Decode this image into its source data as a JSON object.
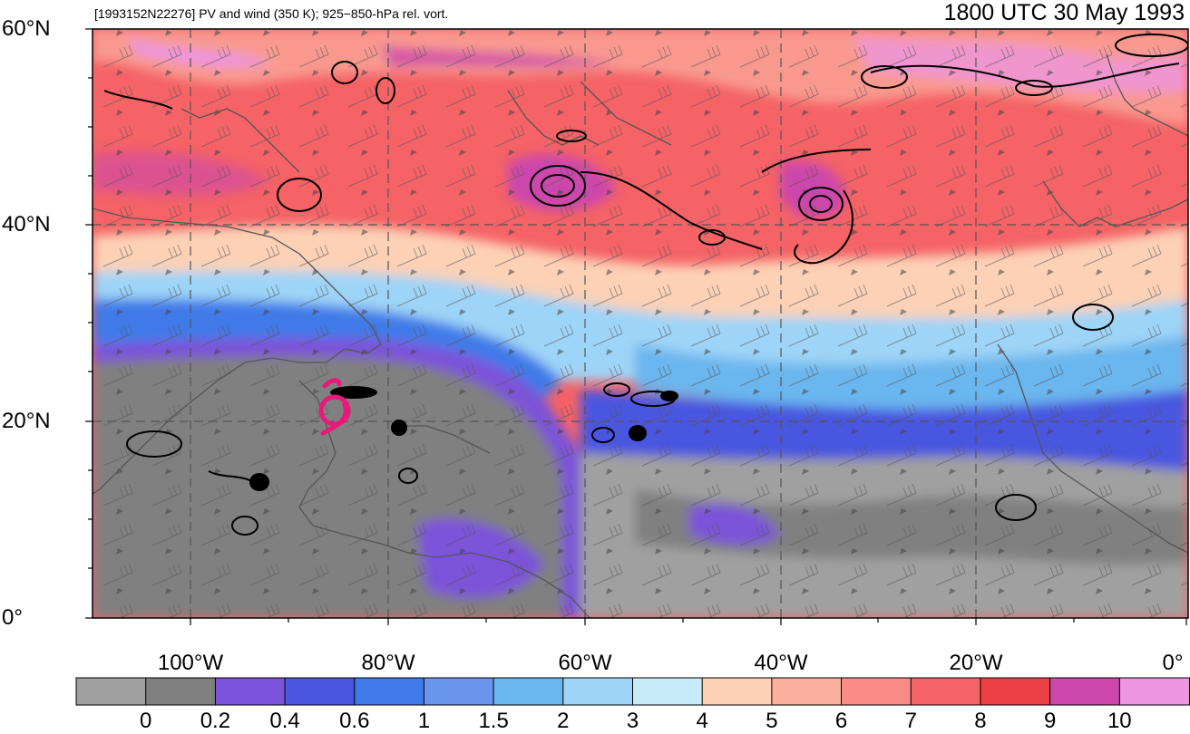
{
  "map": {
    "title_left": "[1993152N22276] PV and wind (350 K); 925−850-hPa rel. vort.",
    "title_right": "1800 UTC 30 May 1993",
    "projection": "cylindrical equidistant",
    "lon_range": [
      -110,
      0
    ],
    "lat_range": [
      0,
      60
    ],
    "gridlines": "dashed",
    "lat_labels": [
      "60°N",
      "40°N",
      "20°N",
      "0°"
    ],
    "lon_labels": [
      "100°W",
      "80°W",
      "60°W",
      "40°W",
      "20°W",
      "0°"
    ],
    "storm_marker_color": "#e8197b",
    "contour_color": "#000000",
    "coastline_color": "#555555"
  },
  "colorbar": {
    "levels": [
      "0",
      "0.2",
      "0.4",
      "0.6",
      "1",
      "1.5",
      "2",
      "3",
      "4",
      "5",
      "6",
      "7",
      "8",
      "9",
      "10"
    ],
    "colors": [
      "#a0a0a0",
      "#808080",
      "#7b52d9",
      "#4a56e0",
      "#3f7ae8",
      "#6a95ec",
      "#6ab6ee",
      "#9ed4f7",
      "#c8ebfb",
      "#fcd1b6",
      "#fbb0a0",
      "#f98a87",
      "#f56366",
      "#ec3f44",
      "#cc47ac",
      "#ed95e0"
    ]
  }
}
